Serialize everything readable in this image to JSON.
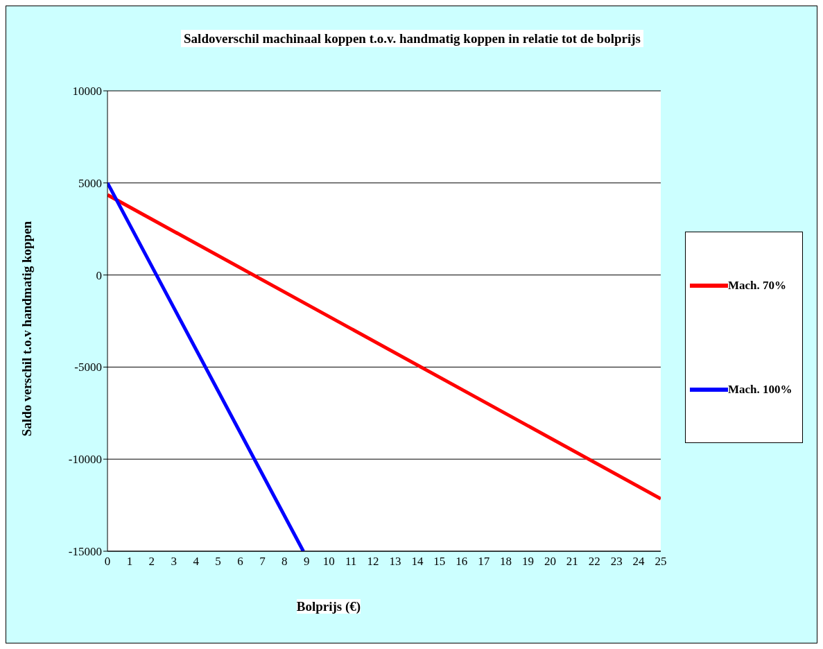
{
  "chart_data": {
    "type": "line",
    "title": "Saldoverschil machinaal koppen  t.o.v. handmatig koppen in relatie tot de bolprijs",
    "xlabel": "Bolprijs (€)",
    "ylabel": "Saldo verschil t.o.v handmatig koppen",
    "series": [
      {
        "name": "Mach. 70%",
        "color": "#ff0000",
        "x": [
          0,
          25
        ],
        "values": [
          4350,
          -12150
        ]
      },
      {
        "name": "Mach. 100%",
        "color": "#0000ff",
        "x": [
          0,
          8.85
        ],
        "values": [
          5000,
          -15000
        ]
      }
    ],
    "xlim": [
      0,
      25
    ],
    "xticks": [
      0,
      1,
      2,
      3,
      4,
      5,
      6,
      7,
      8,
      9,
      10,
      11,
      12,
      13,
      14,
      15,
      16,
      17,
      18,
      19,
      20,
      21,
      22,
      23,
      24,
      25
    ],
    "ylim": [
      -15000,
      10000
    ],
    "yticks": [
      -15000,
      -10000,
      -5000,
      0,
      5000,
      10000
    ],
    "grid": "y",
    "legend": "right",
    "marker": "none",
    "line_style": "solid"
  }
}
